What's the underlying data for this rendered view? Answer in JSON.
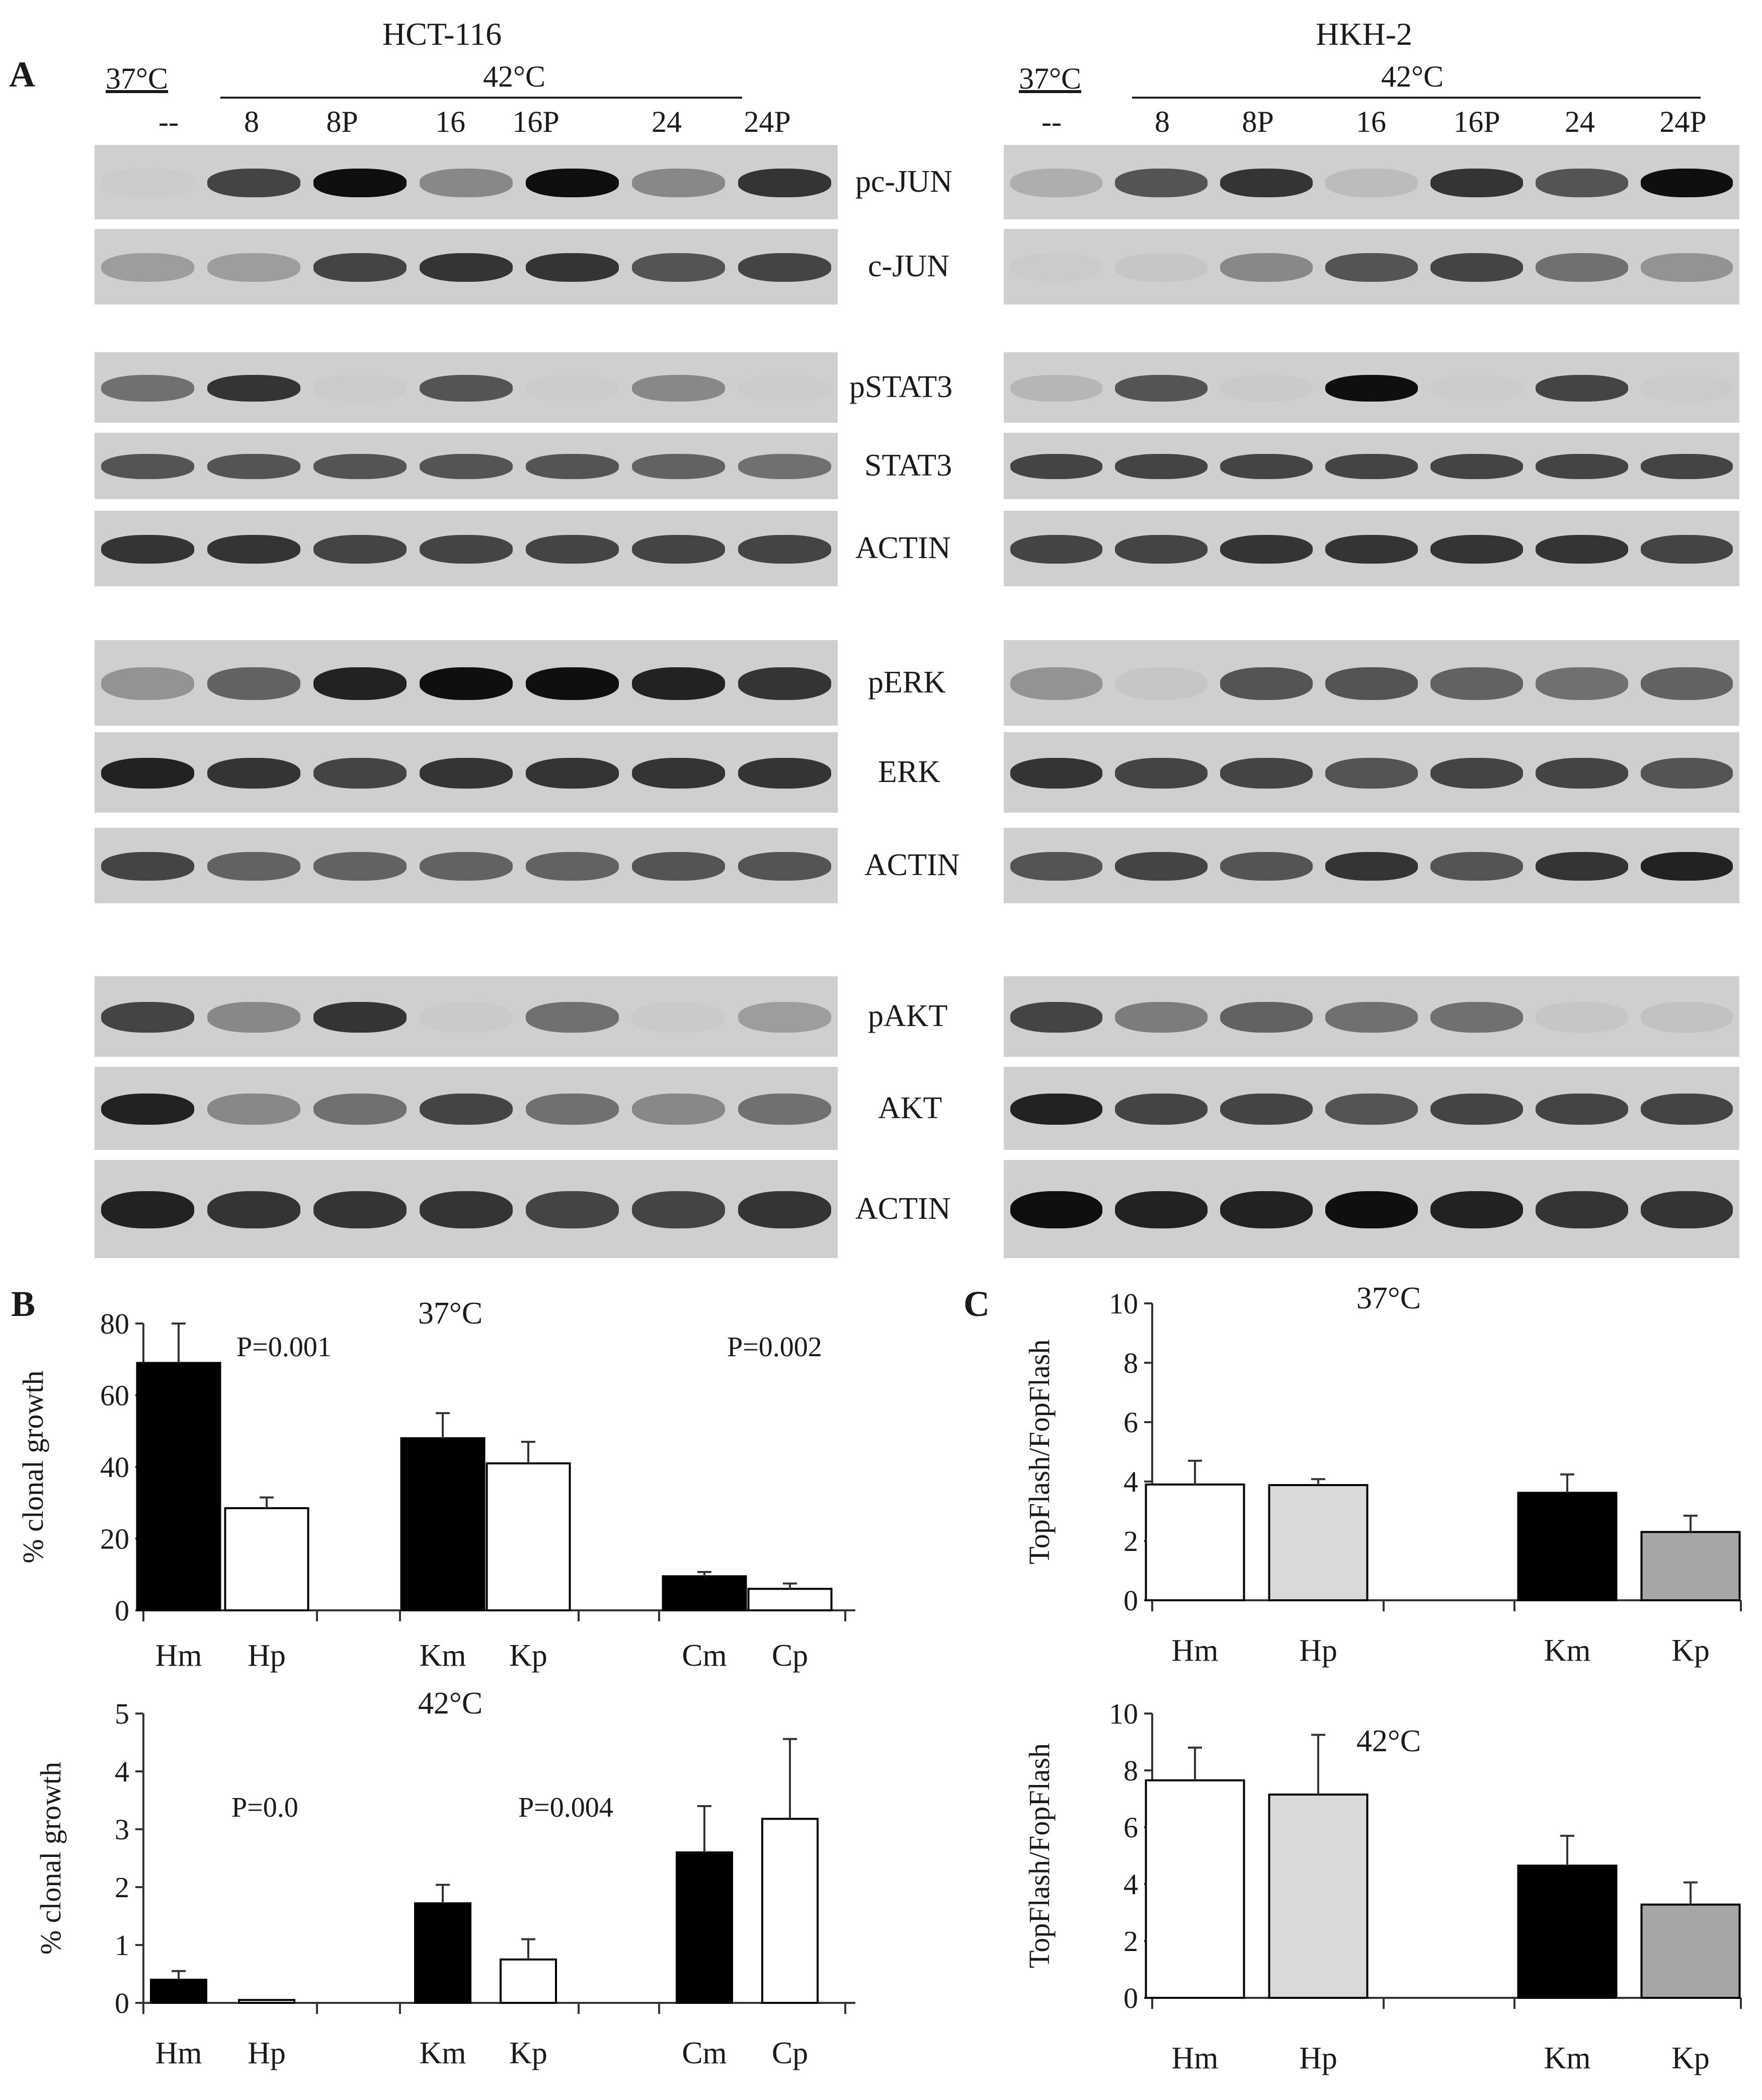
{
  "panel_labels": {
    "a": "A",
    "b": "B",
    "c": "C"
  },
  "blot": {
    "cell_lines": [
      "HCT-116",
      "HKH-2"
    ],
    "temp_control": "37°C",
    "temp_treated": "42°C",
    "lanes": [
      "--",
      "8",
      "8P",
      "16",
      "16P",
      "24",
      "24P"
    ],
    "proteins": [
      "pc-JUN",
      "c-JUN",
      "pSTAT3",
      "STAT3",
      "ACTIN",
      "pERK",
      "ERK",
      "ACTIN",
      "pAKT",
      "AKT",
      "ACTIN"
    ]
  },
  "chart_data": [
    {
      "panel": "B",
      "type": "bar",
      "title": "37°C",
      "ylabel": "% clonal growth",
      "ylim": [
        0,
        80
      ],
      "yticks": [
        0,
        20,
        40,
        60,
        80
      ],
      "categories": [
        "Hm",
        "Hp",
        "Km",
        "Kp",
        "Cm",
        "Cp"
      ],
      "values": [
        69,
        28.5,
        48,
        41,
        9.5,
        6
      ],
      "errors": [
        11,
        3,
        7,
        6,
        1.2,
        1.5
      ],
      "colors": [
        "#000000",
        "#ffffff",
        "#000000",
        "#ffffff",
        "#000000",
        "#ffffff"
      ],
      "annotations": [
        "P=0.001",
        "P=0.002"
      ]
    },
    {
      "panel": "B",
      "type": "bar",
      "title": "42°C",
      "ylabel": "% clonal growth",
      "ylim": [
        0,
        5
      ],
      "yticks": [
        0,
        1,
        2,
        3,
        4,
        5
      ],
      "categories": [
        "Hm",
        "Hp",
        "Km",
        "Kp",
        "Cm",
        "Cp"
      ],
      "values": [
        0.4,
        0.05,
        1.72,
        0.75,
        2.6,
        3.18
      ],
      "errors": [
        0.15,
        0,
        0.32,
        0.35,
        0.8,
        1.38
      ],
      "colors": [
        "#000000",
        "#ffffff",
        "#000000",
        "#ffffff",
        "#000000",
        "#ffffff"
      ],
      "annotations": [
        "P=0.0",
        "P=0.004"
      ]
    },
    {
      "panel": "C",
      "type": "bar",
      "title": "37°C",
      "ylabel": "TopFlash/FopFlash",
      "ylim": [
        0,
        10
      ],
      "yticks": [
        0,
        2,
        4,
        6,
        8,
        10
      ],
      "categories": [
        "Hm",
        "Hp",
        "Km",
        "Kp"
      ],
      "values": [
        3.9,
        3.88,
        3.62,
        2.3
      ],
      "errors": [
        0.8,
        0.2,
        0.62,
        0.55
      ],
      "colors": [
        "#ffffff",
        "#d9d9d9",
        "#000000",
        "#a6a6a6"
      ],
      "annotations": []
    },
    {
      "panel": "C",
      "type": "bar",
      "title": "42°C",
      "ylabel": "TopFlash/FopFlash",
      "ylim": [
        0,
        10
      ],
      "yticks": [
        0,
        2,
        4,
        6,
        8,
        10
      ],
      "categories": [
        "Hm",
        "Hp",
        "Km",
        "Kp"
      ],
      "values": [
        7.65,
        7.15,
        4.65,
        3.28
      ],
      "errors": [
        1.15,
        2.1,
        1.05,
        0.78
      ],
      "colors": [
        "#ffffff",
        "#d9d9d9",
        "#000000",
        "#a6a6a6"
      ],
      "annotations": []
    }
  ]
}
